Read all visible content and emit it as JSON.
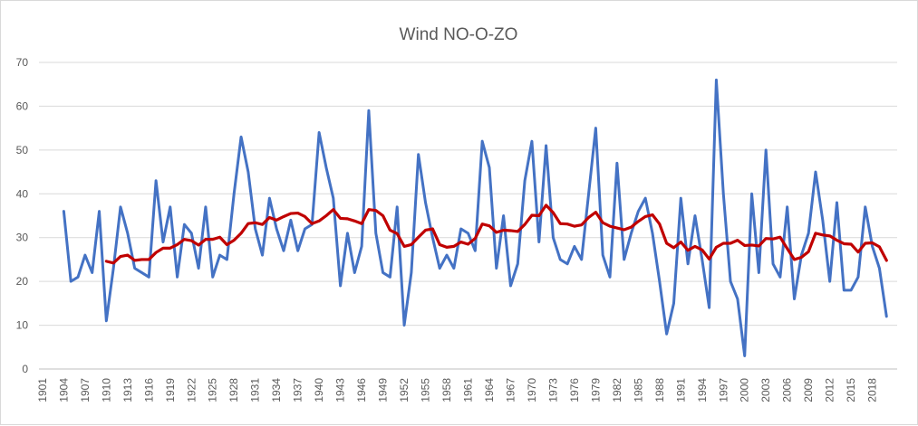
{
  "chart_data": {
    "type": "line",
    "title": "Wind NO-O-ZO",
    "xlabel": "",
    "ylabel": "",
    "ylim": [
      0,
      70
    ],
    "yticks": [
      0,
      10,
      20,
      30,
      40,
      50,
      60,
      70
    ],
    "grid": "horizontal",
    "x_start": 1901,
    "x_end": 2021,
    "xtick_labels": [
      "1901",
      "1904",
      "1907",
      "1910",
      "1913",
      "1916",
      "1919",
      "1922",
      "1925",
      "1928",
      "1931",
      "1934",
      "1937",
      "1940",
      "1943",
      "1946",
      "1949",
      "1952",
      "1955",
      "1958",
      "1961",
      "1964",
      "1967",
      "1970",
      "1973",
      "1976",
      "1979",
      "1982",
      "1985",
      "1988",
      "1991",
      "1994",
      "1997",
      "2000",
      "2003",
      "2006",
      "2009",
      "2012",
      "2015",
      "2018"
    ],
    "series": [
      {
        "color": "#4472c4",
        "x": [
          1904,
          1905,
          1906,
          1907,
          1908,
          1909,
          1910,
          1911,
          1912,
          1913,
          1914,
          1915,
          1916,
          1917,
          1918,
          1919,
          1920,
          1921,
          1922,
          1923,
          1924,
          1925,
          1926,
          1927,
          1928,
          1929,
          1930,
          1931,
          1932,
          1933,
          1934,
          1935,
          1936,
          1937,
          1938,
          1939,
          1940,
          1941,
          1942,
          1943,
          1944,
          1945,
          1946,
          1947,
          1948,
          1949,
          1950,
          1951,
          1952,
          1953,
          1954,
          1955,
          1956,
          1957,
          1958,
          1959,
          1960,
          1961,
          1962,
          1963,
          1964,
          1965,
          1966,
          1967,
          1968,
          1969,
          1970,
          1971,
          1972,
          1973,
          1974,
          1975,
          1976,
          1977,
          1978,
          1979,
          1980,
          1981,
          1982,
          1983,
          1984,
          1985,
          1986,
          1987,
          1988,
          1989,
          1990,
          1991,
          1992,
          1993,
          1994,
          1995,
          1996,
          1997,
          1998,
          1999,
          2000,
          2001,
          2002,
          2003,
          2004,
          2005,
          2006,
          2007,
          2008,
          2009,
          2010,
          2011,
          2012,
          2013,
          2014,
          2015,
          2016,
          2017,
          2018,
          2019,
          2020
        ],
        "y": [
          36,
          20,
          21,
          26,
          22,
          36,
          11,
          23,
          37,
          31,
          23,
          22,
          21,
          43,
          29,
          37,
          21,
          33,
          31,
          23,
          37,
          21,
          26,
          25,
          40,
          53,
          45,
          32,
          26,
          39,
          32,
          27,
          34,
          27,
          32,
          33,
          54,
          46,
          39,
          19,
          31,
          22,
          28,
          59,
          31,
          22,
          21,
          37,
          10,
          22,
          49,
          38,
          30,
          23,
          26,
          23,
          32,
          31,
          27,
          52,
          46,
          23,
          35,
          19,
          24,
          43,
          52,
          29,
          51,
          30,
          25,
          24,
          28,
          25,
          40,
          55,
          26,
          21,
          47,
          25,
          31,
          36,
          39,
          31,
          20,
          8,
          15,
          39,
          24,
          35,
          25,
          14,
          66,
          40,
          20,
          16,
          3,
          40,
          22,
          50,
          24,
          21,
          37,
          16,
          26,
          31,
          45,
          34,
          20,
          38,
          18,
          18,
          21,
          37,
          28,
          23,
          12
        ]
      },
      {
        "color": "#c00000",
        "x": [
          1910,
          1911,
          1912,
          1913,
          1914,
          1915,
          1916,
          1917,
          1918,
          1919,
          1920,
          1921,
          1922,
          1923,
          1924,
          1925,
          1926,
          1927,
          1928,
          1929,
          1930,
          1931,
          1932,
          1933,
          1934,
          1935,
          1936,
          1937,
          1938,
          1939,
          1940,
          1941,
          1942,
          1943,
          1944,
          1945,
          1946,
          1947,
          1948,
          1949,
          1950,
          1951,
          1952,
          1953,
          1954,
          1955,
          1956,
          1957,
          1958,
          1959,
          1960,
          1961,
          1962,
          1963,
          1964,
          1965,
          1966,
          1967,
          1968,
          1969,
          1970,
          1971,
          1972,
          1973,
          1974,
          1975,
          1976,
          1977,
          1978,
          1979,
          1980,
          1981,
          1982,
          1983,
          1984,
          1985,
          1986,
          1987,
          1988,
          1989,
          1990,
          1991,
          1992,
          1993,
          1994,
          1995,
          1996,
          1997,
          1998,
          1999,
          2000,
          2001,
          2002,
          2003,
          2004,
          2005,
          2006,
          2007,
          2008,
          2009,
          2010,
          2011,
          2012,
          2013,
          2014,
          2015,
          2016,
          2017,
          2018,
          2019,
          2020
        ],
        "y": [
          24.6,
          24.2,
          25.7,
          26,
          24.8,
          25,
          25,
          26.6,
          27.6,
          27.6,
          28.4,
          29.6,
          29.3,
          28.3,
          29.6,
          29.6,
          30.1,
          28.4,
          29.4,
          31,
          33.2,
          33.4,
          33,
          34.6,
          34,
          34.8,
          35.5,
          35.6,
          34.8,
          33.2,
          33.8,
          35,
          36.4,
          34.4,
          34.3,
          33.8,
          33.2,
          36.4,
          36.2,
          35,
          31.7,
          30.9,
          28,
          28.4,
          30.1,
          31.7,
          32,
          28.4,
          27.8,
          28,
          29,
          28.5,
          29.8,
          33.1,
          32.7,
          31.2,
          31.7,
          31.6,
          31.4,
          33,
          35.1,
          35,
          37.4,
          35.7,
          33.2,
          33.1,
          32.6,
          32.9,
          34.6,
          35.8,
          33.4,
          32.6,
          32.2,
          31.8,
          32.4,
          33.7,
          34.8,
          35.2,
          33.1,
          28.7,
          27.7,
          29,
          27.1,
          28,
          27.2,
          25.1,
          27.8,
          28.7,
          28.7,
          29.4,
          28.2,
          28.3,
          28.1,
          29.8,
          29.7,
          30.1,
          27.5,
          25,
          25.5,
          26.8,
          31,
          30.6,
          30.4,
          29.4,
          28.6,
          28.5,
          26.7,
          28.7,
          28.8,
          27.9,
          24.8
        ]
      }
    ]
  }
}
